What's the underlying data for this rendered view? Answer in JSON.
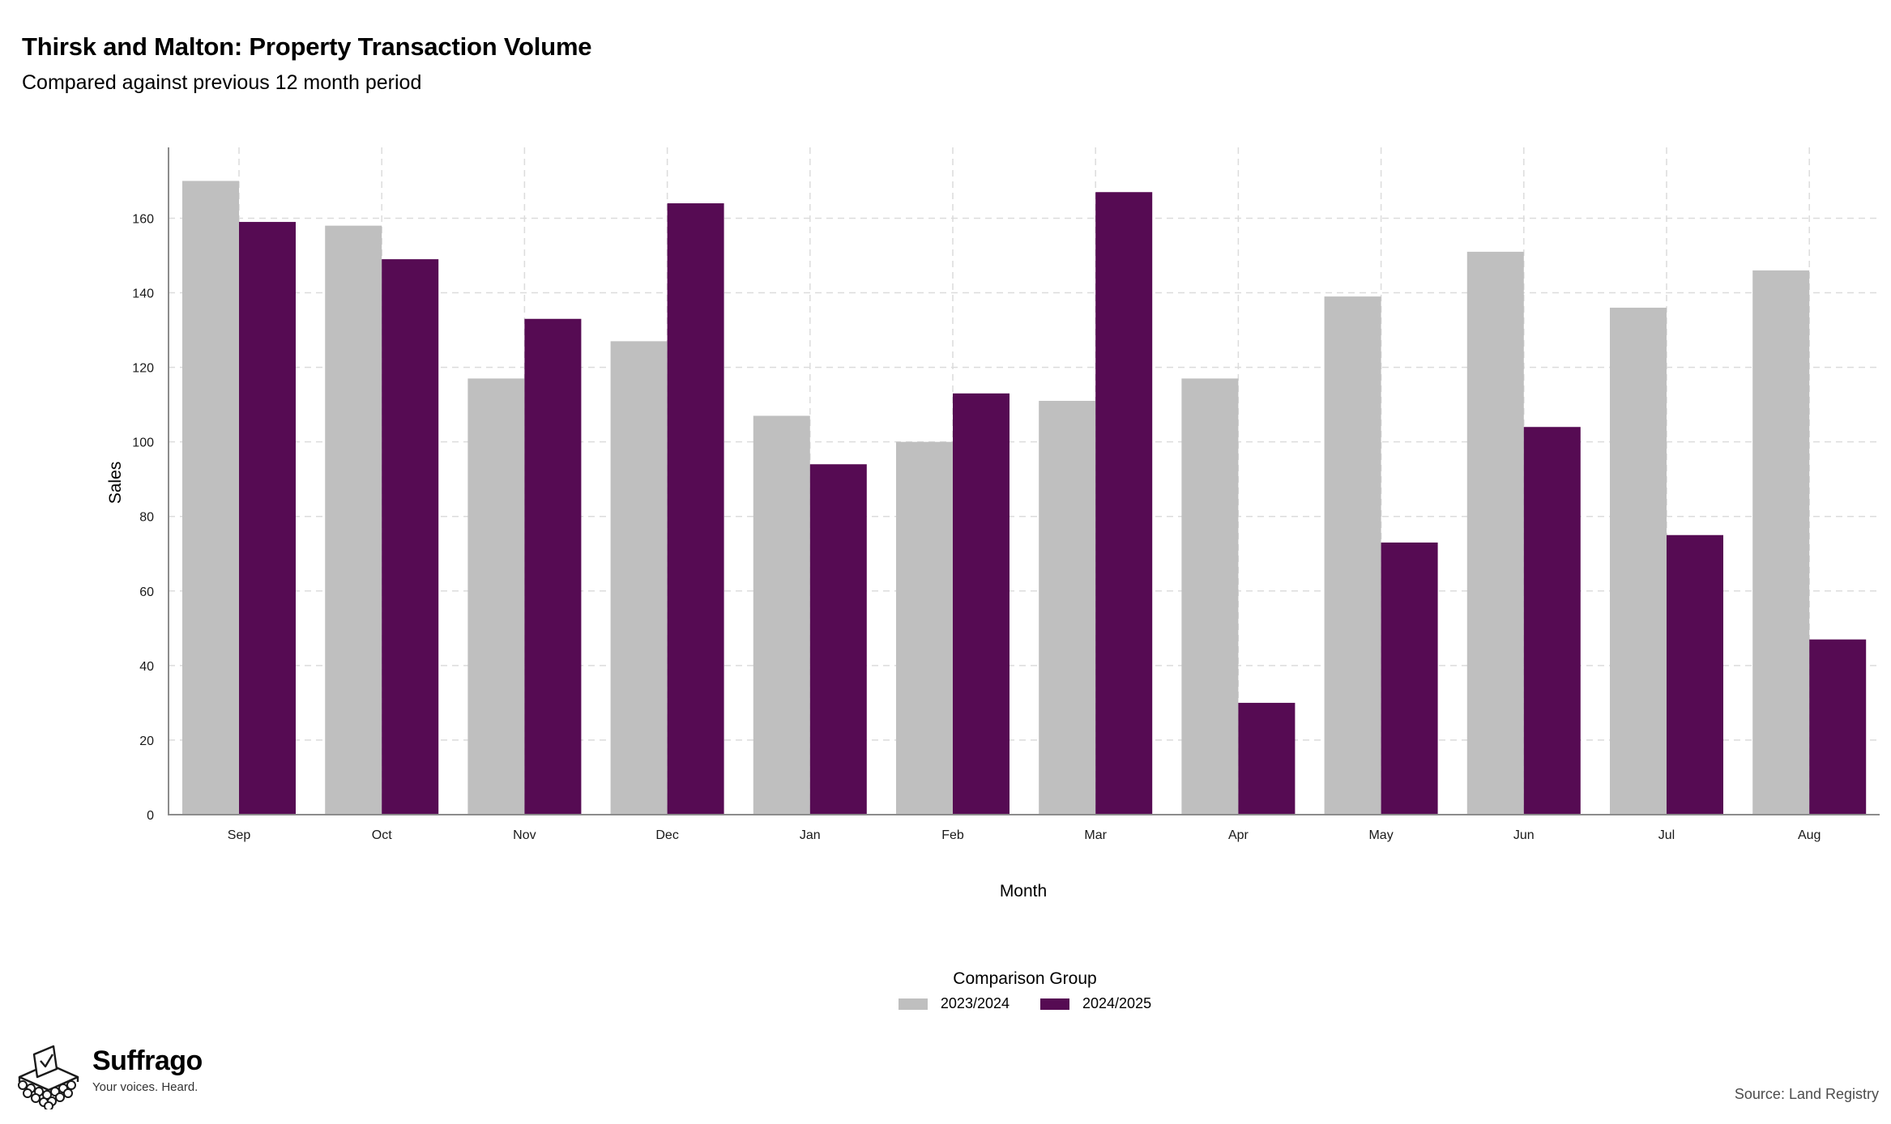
{
  "header": {
    "title": "Thirsk and Malton: Property Transaction Volume",
    "subtitle": "Compared against previous 12 month period"
  },
  "chart_data": {
    "type": "bar",
    "title": "Thirsk and Malton: Property Transaction Volume",
    "subtitle": "Compared against previous 12 month period",
    "xlabel": "Month",
    "ylabel": "Sales",
    "categories": [
      "Sep",
      "Oct",
      "Nov",
      "Dec",
      "Jan",
      "Feb",
      "Mar",
      "Apr",
      "May",
      "Jun",
      "Jul",
      "Aug"
    ],
    "series": [
      {
        "name": "2023/2024",
        "color": "#bfbfbf",
        "values": [
          170,
          158,
          117,
          127,
          107,
          100,
          111,
          117,
          139,
          151,
          136,
          146
        ]
      },
      {
        "name": "2024/2025",
        "color": "#560b53",
        "values": [
          159,
          149,
          133,
          164,
          94,
          113,
          167,
          30,
          73,
          104,
          75,
          47
        ]
      }
    ],
    "ylim": [
      0,
      179
    ],
    "yticks": [
      0,
      20,
      40,
      60,
      80,
      100,
      120,
      140,
      160
    ],
    "grid": true,
    "legend": {
      "title": "Comparison Group",
      "position": "bottom"
    }
  },
  "legend": {
    "title": "Comparison Group",
    "items": [
      {
        "label": "2023/2024",
        "color": "#bfbfbf"
      },
      {
        "label": "2024/2025",
        "color": "#560b53"
      }
    ]
  },
  "footer": {
    "brand": "Suffrago",
    "tagline": "Your voices. Heard.",
    "source": "Source: Land Registry"
  }
}
